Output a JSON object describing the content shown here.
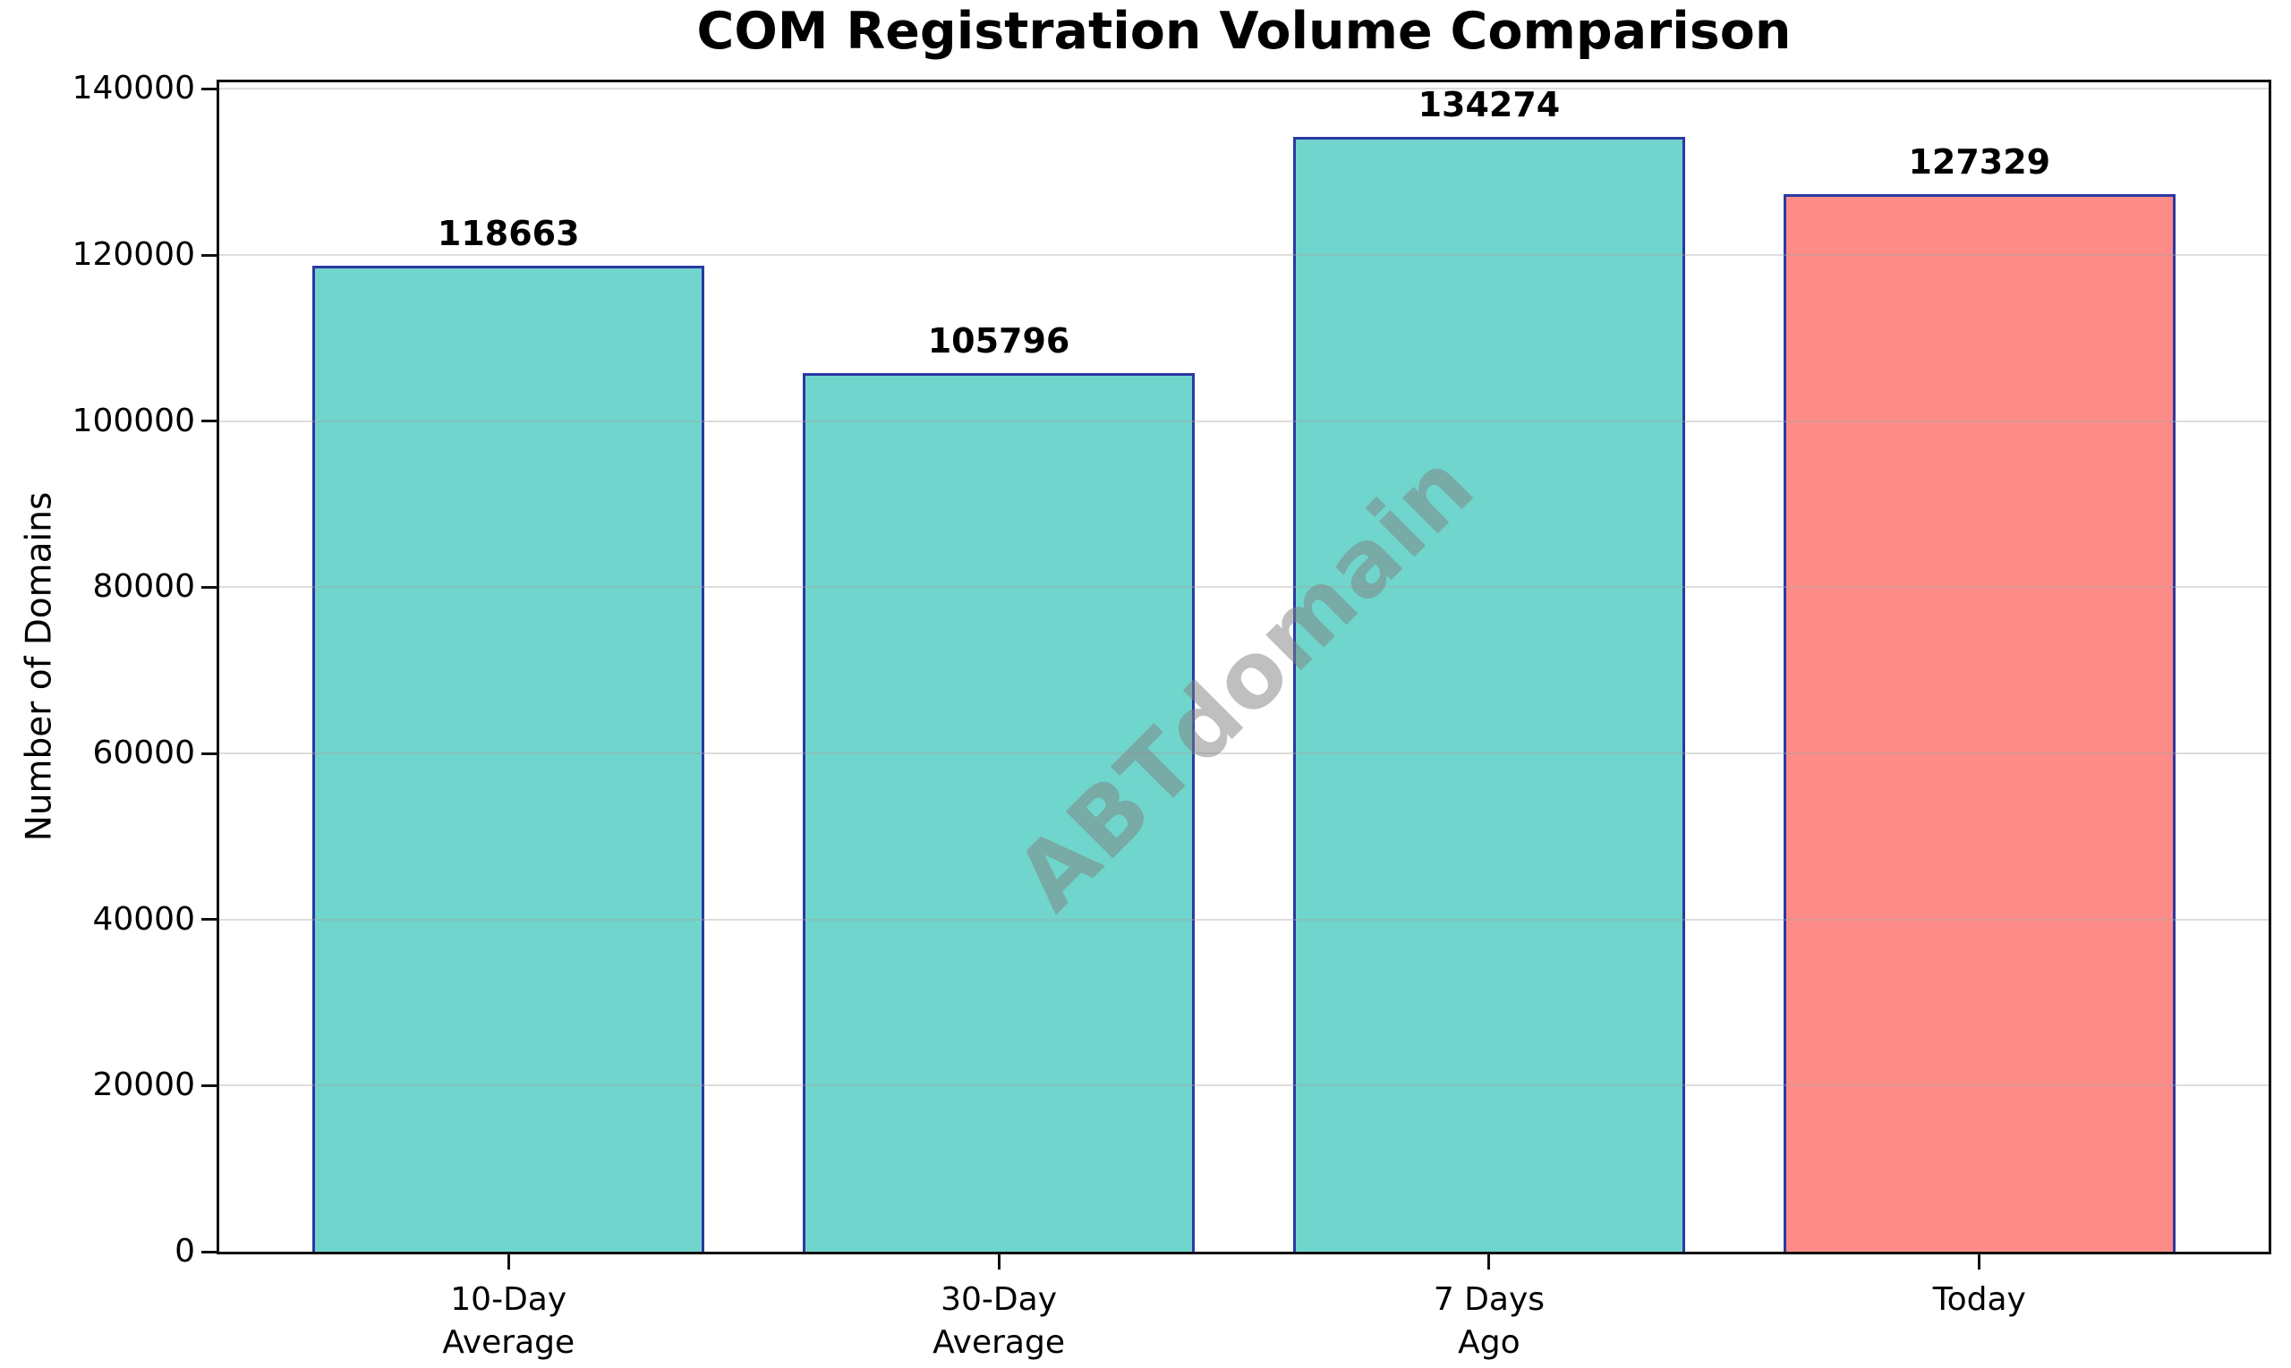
{
  "figure": {
    "title": "COM Registration Volume Comparison",
    "watermark": "ABTdomain"
  },
  "chart_data": {
    "type": "bar",
    "title": "COM Registration Volume Comparison",
    "categories": [
      "10-Day\nAverage",
      "30-Day\nAverage",
      "7 Days\nAgo",
      "Today"
    ],
    "values": [
      118663,
      105796,
      134274,
      127329
    ],
    "value_labels": [
      "118663",
      "105796",
      "134274",
      "127329"
    ],
    "xlabel": "",
    "ylabel": "Number of Domains",
    "yticks": [
      0,
      20000,
      40000,
      60000,
      80000,
      100000,
      120000,
      140000
    ],
    "ytick_labels": [
      "0",
      "20000",
      "40000",
      "60000",
      "80000",
      "100000",
      "120000",
      "140000"
    ],
    "ylim": [
      0,
      140800
    ],
    "x_range": [
      -0.59,
      3.59
    ],
    "bar_width_fraction": 0.8,
    "grid": true,
    "legend": false,
    "annotations": [
      "ABTdomain"
    ],
    "colors": {
      "bar_fill": [
        "#70D5CC",
        "#70D5CC",
        "#70D5CC",
        "#FD8B87"
      ],
      "bar_edge": "#2B38A3",
      "grid_line_rgba": "rgba(165,165,165,0.38)",
      "frame": "#111111",
      "text": "#000000",
      "watermark": "rgba(128,128,128,0.5)",
      "background": "#FFFFFF"
    }
  }
}
